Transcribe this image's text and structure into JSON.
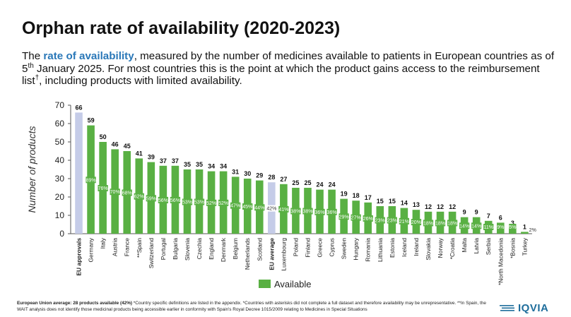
{
  "title": "Orphan rate of availability (2020-2023)",
  "subtitle": {
    "intro": "The ",
    "highlight": "rate of availability",
    "part1": ", measured by the number of medicines available to patients in European countries as of 5",
    "superscript": "th",
    "part2": " January 2025. For most countries this is the point at which the product gains access to the reimbursement list",
    "dagger": "†",
    "part3": ", including products with limited availability."
  },
  "footnote": {
    "bold": "European Union average: 28 products available (42%)",
    "text": " *Country specific definitions are listed in the appendix. *Countries with asterisks did not complete a full dataset and therefore availability may be unrepresentative. **In Spain, the WAIT analysis does not identify those medicinal products being accessible earlier in conformity with Spain's Royal Decree 1015/2009 relating to Medicines in Special Situations"
  },
  "logo": {
    "text": "IQVIA"
  },
  "colors": {
    "available": "#59b043",
    "reference": "#c5cce8",
    "pct_label_bg": "#59b043",
    "pct_label_text": "#ffffff",
    "brand": "#1f6e9c",
    "highlight": "#2a78b8"
  },
  "chart_data": {
    "type": "bar",
    "ylabel": "Number of products",
    "xlabel": "",
    "ylim": [
      0,
      70
    ],
    "yticks": [
      0,
      10,
      20,
      30,
      40,
      50,
      60,
      70
    ],
    "grid": false,
    "legend": {
      "position": "bottom-center",
      "entries": [
        "Available"
      ]
    },
    "categories": [
      "EU approvals",
      "Germany",
      "Italy",
      "Austria",
      "France",
      "**Spain",
      "Switzerland",
      "Portugal",
      "Bulgaria",
      "Slovenia",
      "Czechia",
      "England",
      "Denmark",
      "Belgium",
      "Netherlands",
      "Scotland",
      "EU average",
      "Luxembourg",
      "Poland",
      "Finland",
      "Greece",
      "Cyprus",
      "Sweden",
      "Hungary",
      "Romania",
      "Lithuania",
      "Estonia",
      "Iceland",
      "Ireland",
      "Slovakia",
      "Norway",
      "*Croatia",
      "Malta",
      "Latvia",
      "Serbia",
      "*North Macedonia",
      "*Bosnia",
      "Turkey"
    ],
    "bold_categories": [
      "EU approvals",
      "EU average"
    ],
    "reference_categories": [
      "EU approvals",
      "EU average"
    ],
    "series": [
      {
        "name": "Available",
        "values": [
          66,
          59,
          50,
          46,
          45,
          41,
          39,
          37,
          37,
          35,
          35,
          34,
          34,
          31,
          30,
          29,
          28,
          27,
          25,
          25,
          24,
          24,
          19,
          18,
          17,
          15,
          15,
          14,
          13,
          12,
          12,
          12,
          9,
          9,
          7,
          6,
          3,
          1
        ],
        "percent_labels": [
          "",
          "89%",
          "76%",
          "70%",
          "68%",
          "62%",
          "59%",
          "56%",
          "56%",
          "53%",
          "53%",
          "52%",
          "52%",
          "47%",
          "45%",
          "44%",
          "42%",
          "41%",
          "38%",
          "38%",
          "36%",
          "36%",
          "29%",
          "27%",
          "26%",
          "23%",
          "23%",
          "21%",
          "20%",
          "18%",
          "18%",
          "18%",
          "14%",
          "14%",
          "11%",
          "9%",
          "5%",
          "2%"
        ]
      }
    ]
  }
}
